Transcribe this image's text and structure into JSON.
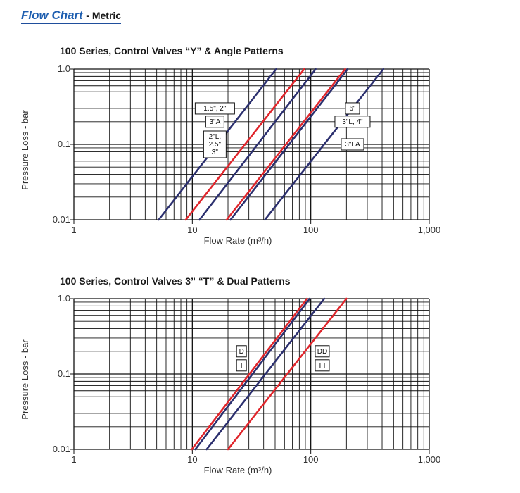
{
  "header": {
    "title": "Flow Chart",
    "subtitle": "- Metric"
  },
  "colors": {
    "navy": "#2b2f6e",
    "red": "#e0252b",
    "grid": "#111111",
    "header_blue": "#1f5fb0"
  },
  "chart_data": [
    {
      "type": "line",
      "title": "100 Series, Control Valves “Y” & Angle Patterns",
      "xlabel": "Flow Rate (m³/h)",
      "ylabel": "Pressure Loss - bar",
      "x_scale": "log",
      "y_scale": "log",
      "xlim": [
        1,
        1000
      ],
      "ylim": [
        0.01,
        1.0
      ],
      "xticks": [
        "1",
        "10",
        "100",
        "1,000"
      ],
      "yticks": [
        "0.01",
        "0.1",
        "1.0"
      ],
      "grid": true,
      "series": [
        {
          "color": "#2b2f6e",
          "points": [
            [
              5.2,
              0.01
            ],
            [
              51,
              1.0
            ]
          ]
        },
        {
          "color": "#e0252b",
          "points": [
            [
              8.8,
              0.01
            ],
            [
              88,
              1.0
            ]
          ]
        },
        {
          "color": "#e0252b",
          "points": [
            [
              19.5,
              0.01
            ],
            [
              195,
              1.0
            ]
          ]
        },
        {
          "color": "#2b2f6e",
          "points": [
            [
              11.5,
              0.01
            ],
            [
              110,
              1.0
            ]
          ]
        },
        {
          "color": "#2b2f6e",
          "points": [
            [
              21,
              0.01
            ],
            [
              205,
              1.0
            ]
          ]
        },
        {
          "color": "#2b2f6e",
          "points": [
            [
              41,
              0.01
            ],
            [
              410,
              1.0
            ]
          ]
        }
      ],
      "annotations": [
        {
          "lines": [
            "1.5\", 2\""
          ],
          "side": "left",
          "y": 0.3,
          "x": 15.5
        },
        {
          "lines": [
            "3\"A"
          ],
          "side": "left",
          "y": 0.2,
          "x": 15.5
        },
        {
          "lines": [
            "2\"L,",
            "2.5\"",
            "3\""
          ],
          "side": "left",
          "y": 0.1,
          "x": 15.5
        },
        {
          "lines": [
            "6\""
          ],
          "side": "right",
          "y": 0.3,
          "x": 225
        },
        {
          "lines": [
            "3\"L, 4\""
          ],
          "side": "right",
          "y": 0.2,
          "x": 225
        },
        {
          "lines": [
            "3\"LA"
          ],
          "side": "right",
          "y": 0.1,
          "x": 225
        }
      ]
    },
    {
      "type": "line",
      "title": "100 Series, Control Valves 3” “T” & Dual Patterns",
      "xlabel": "Flow Rate (m³/h)",
      "ylabel": "Pressure Loss - bar",
      "x_scale": "log",
      "y_scale": "log",
      "xlim": [
        1,
        1000
      ],
      "ylim": [
        0.01,
        1.0
      ],
      "xticks": [
        "1",
        "10",
        "100",
        "1,000"
      ],
      "yticks": [
        "0.01",
        "0.1",
        "1.0"
      ],
      "grid": true,
      "series": [
        {
          "color": "#e0252b",
          "points": [
            [
              9.9,
              0.01
            ],
            [
              93,
              1.0
            ]
          ]
        },
        {
          "color": "#2b2f6e",
          "points": [
            [
              10.6,
              0.01
            ],
            [
              98,
              1.0
            ]
          ]
        },
        {
          "color": "#2b2f6e",
          "points": [
            [
              13.2,
              0.01
            ],
            [
              130,
              1.0
            ]
          ]
        },
        {
          "color": "#e0252b",
          "points": [
            [
              20,
              0.01
            ],
            [
              200,
              1.0
            ]
          ]
        }
      ],
      "annotations": [
        {
          "lines": [
            "D"
          ],
          "side": "left",
          "y": 0.2,
          "x": 26
        },
        {
          "lines": [
            "T"
          ],
          "side": "left",
          "y": 0.13,
          "x": 26
        },
        {
          "lines": [
            "DD"
          ],
          "side": "right",
          "y": 0.2,
          "x": 125
        },
        {
          "lines": [
            "TT"
          ],
          "side": "right",
          "y": 0.13,
          "x": 125
        }
      ]
    }
  ]
}
